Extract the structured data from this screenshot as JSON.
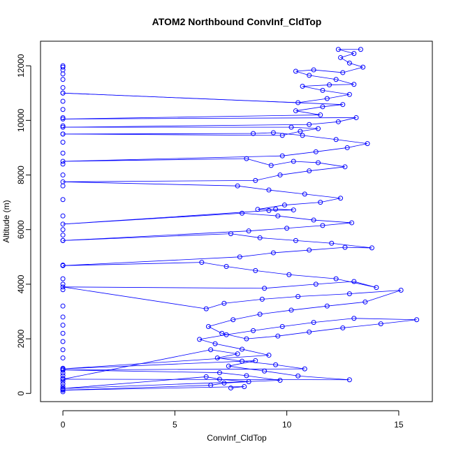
{
  "chart_data": {
    "type": "line",
    "title": "ATOM2 Northbound ConvInf_CldTop",
    "xlabel": "ConvInf_CldTop",
    "ylabel": "Altitude (m)",
    "xlim": [
      -1,
      16.5
    ],
    "ylim": [
      -300,
      12900
    ],
    "xticks": [
      0,
      5,
      10,
      15
    ],
    "yticks": [
      0,
      2000,
      4000,
      6000,
      8000,
      10000,
      12000
    ],
    "grid": false,
    "legend": "none",
    "series_color": "#0000ff",
    "marker": "open-circle",
    "series": [
      {
        "points": [
          [
            7.5,
            200
          ],
          [
            8.1,
            250
          ],
          [
            0,
            120
          ],
          [
            6.6,
            300
          ],
          [
            7.2,
            380
          ],
          [
            8.3,
            430
          ],
          [
            7.0,
            520
          ],
          [
            6.4,
            610
          ],
          [
            0,
            180
          ],
          [
            9.7,
            480
          ],
          [
            8.2,
            650
          ],
          [
            7.0,
            760
          ],
          [
            0,
            860
          ],
          [
            10.8,
            900
          ],
          [
            9.5,
            1050
          ],
          [
            8.0,
            1180
          ],
          [
            6.9,
            1300
          ],
          [
            7.8,
            1450
          ],
          [
            6.6,
            1600
          ],
          [
            0,
            520
          ],
          [
            12.8,
            500
          ],
          [
            10.5,
            640
          ],
          [
            9.0,
            820
          ],
          [
            7.4,
            1000
          ],
          [
            8.6,
            1200
          ],
          [
            0,
            900
          ],
          [
            9.2,
            1400
          ],
          [
            8.0,
            1620
          ],
          [
            6.8,
            1820
          ],
          [
            6.1,
            1980
          ],
          [
            7.3,
            2150
          ],
          [
            8.5,
            2300
          ],
          [
            9.8,
            2450
          ],
          [
            11.2,
            2600
          ],
          [
            13.0,
            2750
          ],
          [
            15.8,
            2700
          ],
          [
            14.2,
            2550
          ],
          [
            12.5,
            2400
          ],
          [
            11.0,
            2250
          ],
          [
            9.6,
            2100
          ],
          [
            8.2,
            2000
          ],
          [
            7.1,
            2200
          ],
          [
            6.5,
            2450
          ],
          [
            7.6,
            2700
          ],
          [
            8.8,
            2900
          ],
          [
            10.2,
            3050
          ],
          [
            11.8,
            3200
          ],
          [
            13.5,
            3350
          ],
          [
            15.1,
            3780
          ],
          [
            12.8,
            3650
          ],
          [
            10.5,
            3550
          ],
          [
            8.9,
            3450
          ],
          [
            7.2,
            3300
          ],
          [
            6.4,
            3100
          ],
          [
            0,
            3900
          ],
          [
            9.0,
            3850
          ],
          [
            11.3,
            4000
          ],
          [
            13.0,
            4100
          ],
          [
            14.0,
            3880
          ],
          [
            12.2,
            4200
          ],
          [
            10.1,
            4350
          ],
          [
            8.6,
            4500
          ],
          [
            7.3,
            4650
          ],
          [
            6.2,
            4800
          ],
          [
            0,
            4680
          ],
          [
            7.9,
            5000
          ],
          [
            9.4,
            5150
          ],
          [
            11.0,
            5250
          ],
          [
            12.6,
            5350
          ],
          [
            13.8,
            5330
          ],
          [
            12.0,
            5500
          ],
          [
            10.4,
            5600
          ],
          [
            8.8,
            5700
          ],
          [
            7.5,
            5850
          ],
          [
            0,
            5600
          ],
          [
            8.3,
            5950
          ],
          [
            10.0,
            6050
          ],
          [
            11.6,
            6150
          ],
          [
            12.9,
            6250
          ],
          [
            11.2,
            6350
          ],
          [
            9.6,
            6500
          ],
          [
            8.0,
            6600
          ],
          [
            0,
            6200
          ],
          [
            9.2,
            6700
          ],
          [
            10.3,
            6720
          ],
          [
            9.5,
            6750
          ],
          [
            8.7,
            6740
          ],
          [
            9.9,
            6900
          ],
          [
            11.5,
            7000
          ],
          [
            12.4,
            7150
          ],
          [
            10.8,
            7300
          ],
          [
            9.2,
            7450
          ],
          [
            7.8,
            7600
          ],
          [
            0,
            7750
          ],
          [
            8.6,
            7800
          ],
          [
            9.7,
            8000
          ],
          [
            11.0,
            8150
          ],
          [
            12.6,
            8300
          ],
          [
            11.4,
            8450
          ],
          [
            10.3,
            8500
          ],
          [
            9.3,
            8350
          ],
          [
            8.2,
            8600
          ],
          [
            0,
            8500
          ],
          [
            9.8,
            8700
          ],
          [
            11.3,
            8850
          ],
          [
            12.7,
            9000
          ],
          [
            13.6,
            9150
          ],
          [
            12.2,
            9300
          ],
          [
            10.7,
            9450
          ],
          [
            9.4,
            9550
          ],
          [
            8.5,
            9520
          ],
          [
            0,
            9500
          ],
          [
            9.8,
            9450
          ],
          [
            10.6,
            9600
          ],
          [
            11.4,
            9700
          ],
          [
            10.2,
            9750
          ],
          [
            0,
            9750
          ],
          [
            11.0,
            9850
          ],
          [
            12.3,
            9950
          ],
          [
            13.1,
            10100
          ],
          [
            0,
            10050
          ],
          [
            11.5,
            10200
          ],
          [
            10.4,
            10350
          ],
          [
            11.6,
            10500
          ],
          [
            12.5,
            10580
          ],
          [
            0,
            11000
          ],
          [
            10.5,
            10650
          ],
          [
            11.8,
            10800
          ],
          [
            12.8,
            10950
          ],
          [
            11.6,
            11100
          ],
          [
            10.7,
            11250
          ],
          [
            11.9,
            11300
          ],
          [
            13.0,
            11320
          ],
          [
            12.2,
            11500
          ],
          [
            11.0,
            11650
          ],
          [
            10.4,
            11800
          ],
          [
            11.2,
            11850
          ],
          [
            12.5,
            11750
          ],
          [
            13.4,
            11950
          ],
          [
            12.8,
            12100
          ],
          [
            12.4,
            12300
          ],
          [
            13.0,
            12450
          ],
          [
            12.3,
            12600
          ],
          [
            13.3,
            12600
          ]
        ]
      }
    ],
    "zero_column_altitudes": [
      60,
      150,
      250,
      350,
      450,
      550,
      650,
      750,
      850,
      920,
      1300,
      1600,
      1900,
      2200,
      2500,
      2800,
      3200,
      3800,
      4000,
      4200,
      4700,
      5600,
      5800,
      6000,
      6500,
      7100,
      7600,
      8000,
      8400,
      8800,
      9200,
      9500,
      9800,
      10100,
      10400,
      10700,
      11000,
      11200,
      11500,
      11700,
      11850,
      11950,
      12000
    ]
  }
}
